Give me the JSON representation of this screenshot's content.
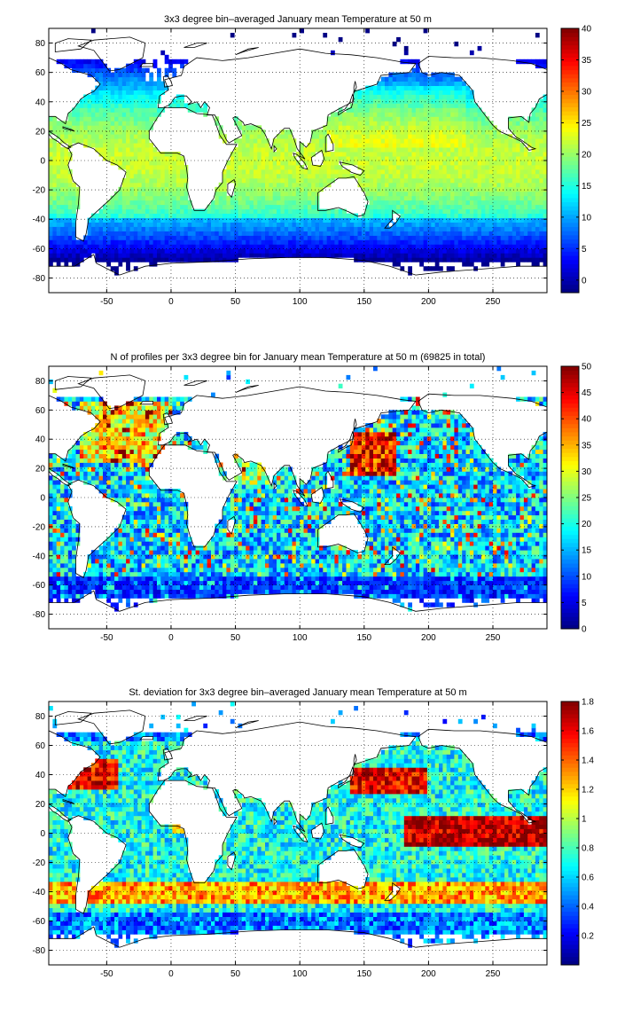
{
  "chart_data": [
    {
      "type": "heatmap",
      "title": "3x3 degree bin–averaged January mean Temperature at 50 m",
      "xlim": [
        -95,
        292
      ],
      "ylim": [
        -90,
        90
      ],
      "x_ticks": [
        -50,
        0,
        50,
        100,
        150,
        200,
        250
      ],
      "y_ticks": [
        -80,
        -60,
        -40,
        -20,
        0,
        20,
        40,
        60,
        80
      ],
      "colorbar": {
        "min": -2,
        "max": 40,
        "ticks": [
          0,
          5,
          10,
          15,
          20,
          25,
          30,
          35,
          40
        ]
      },
      "grid": true,
      "colormap": "jet",
      "bin_size_deg": 3,
      "pattern": "warm tropics (~25-30 degrees) decreasing toward poles (~0 degrees)"
    },
    {
      "type": "heatmap",
      "title": "N of profiles per 3x3 degree bin for January mean Temperature at 50 m (69825 in total)",
      "xlim": [
        -95,
        292
      ],
      "ylim": [
        -90,
        90
      ],
      "x_ticks": [
        -50,
        0,
        50,
        100,
        150,
        200,
        250
      ],
      "y_ticks": [
        -80,
        -60,
        -40,
        -20,
        0,
        20,
        40,
        60,
        80
      ],
      "colorbar": {
        "min": 0,
        "max": 50,
        "ticks": [
          0,
          5,
          10,
          15,
          20,
          25,
          30,
          35,
          40,
          45,
          50
        ]
      },
      "grid": true,
      "colormap": "jet",
      "bin_size_deg": 3,
      "total_profiles": 69825,
      "pattern": "high counts off Japan and in North Atlantic, sparse elsewhere"
    },
    {
      "type": "heatmap",
      "title": "St. deviation for 3x3 degree bin–averaged January mean Temperature at 50 m",
      "xlim": [
        -95,
        292
      ],
      "ylim": [
        -90,
        90
      ],
      "x_ticks": [
        -50,
        0,
        50,
        100,
        150,
        200,
        250
      ],
      "y_ticks": [
        -80,
        -60,
        -40,
        -20,
        0,
        20,
        40,
        60,
        80
      ],
      "colorbar": {
        "min": 0,
        "max": 1.8,
        "ticks": [
          0.2,
          0.4,
          0.6,
          0.8,
          1,
          1.2,
          1.4,
          1.6,
          1.8
        ]
      },
      "grid": true,
      "colormap": "jet",
      "bin_size_deg": 3,
      "pattern": "high variability in equatorial Pacific, Kuroshio, Gulf Stream, and ~40S band"
    }
  ]
}
